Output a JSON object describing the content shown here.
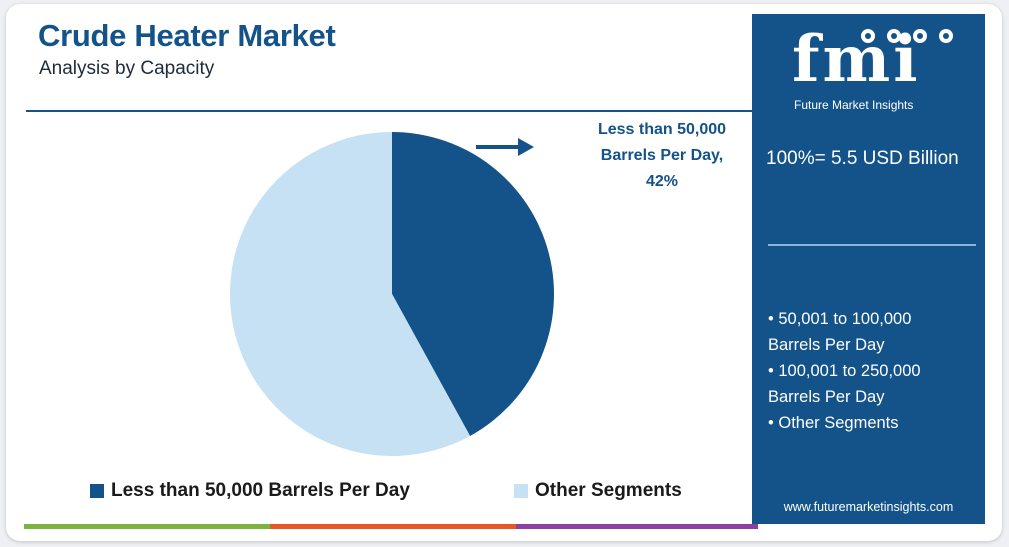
{
  "header": {
    "title": "Crude Heater Market",
    "subtitle": "Analysis by Capacity"
  },
  "callout": {
    "line1": "Less than 50,000",
    "line2": "Barrels Per Day,",
    "line3": "42%"
  },
  "chart_data": {
    "type": "pie",
    "slices": [
      {
        "label": "Less than 50,000 Barrels Per Day",
        "value": 42,
        "color": "#13538a"
      },
      {
        "label": "Other Segments",
        "value": 58,
        "color": "#c6e1f3"
      }
    ],
    "legend_position": "bottom"
  },
  "legend": [
    {
      "label": "Less than 50,000 Barrels Per Day",
      "color": "#13538a"
    },
    {
      "label": "Other Segments",
      "color": "#c6e1f3"
    }
  ],
  "panel": {
    "logo_text": "fmi",
    "logo_subtitle": "Future Market Insights",
    "total": "100%= 5.5 USD Billion",
    "segments": [
      "• 50,001 to 100,000",
      "Barrels Per Day",
      "• 100,001 to 250,000",
      "Barrels Per Day",
      "• Other Segments"
    ],
    "website": "www.futuremarketinsights.com"
  },
  "colors": {
    "brand_blue": "#13538a",
    "light_blue": "#c6e1f3",
    "bar_green": "#7cb342",
    "bar_orange": "#e5582a",
    "bar_purple": "#8e3fa0"
  }
}
